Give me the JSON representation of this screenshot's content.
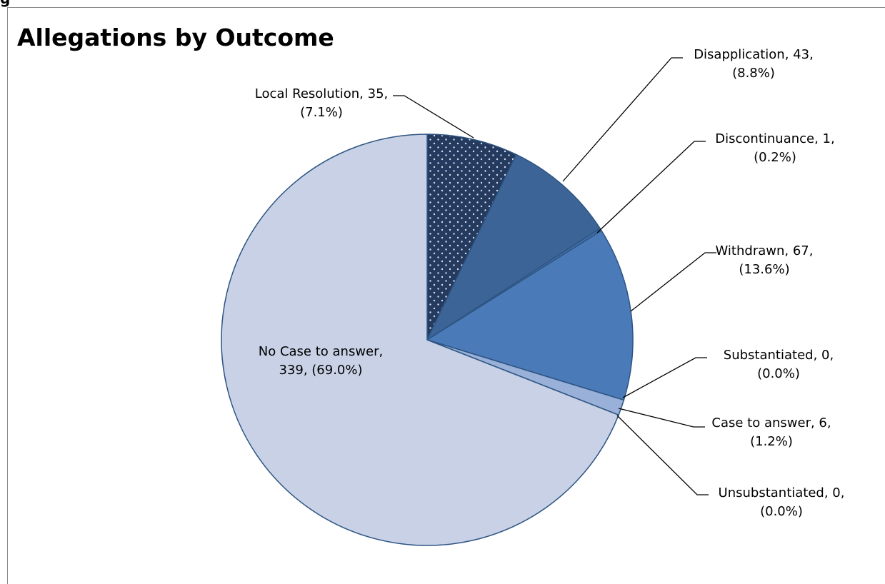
{
  "top_fragment": "g",
  "chart_data": {
    "type": "pie",
    "title": "Allegations by Outcome",
    "start_angle_deg": 0,
    "direction": "clockwise",
    "legend": "none",
    "slices": [
      {
        "name": "Local Resolution",
        "value": 35,
        "percent": "7.1%",
        "color": "#243a5e",
        "pattern": "dots",
        "label_lines": [
          "Local Resolution, 35,",
          "(7.1%)"
        ]
      },
      {
        "name": "Disapplication",
        "value": 43,
        "percent": "8.8%",
        "color": "#3c6496",
        "label_lines": [
          "Disapplication, 43,",
          "(8.8%)"
        ]
      },
      {
        "name": "Discontinuance",
        "value": 1,
        "percent": "0.2%",
        "color": "#4470aa",
        "label_lines": [
          "Discontinuance, 1,",
          "(0.2%)"
        ]
      },
      {
        "name": "Withdrawn",
        "value": 67,
        "percent": "13.6%",
        "color": "#4a7ab8",
        "label_lines": [
          "Withdrawn, 67,",
          "(13.6%)"
        ]
      },
      {
        "name": "Substantiated",
        "value": 0,
        "percent": "0.0%",
        "color": "#6b8fc6",
        "label_lines": [
          "Substantiated, 0,",
          "(0.0%)"
        ]
      },
      {
        "name": "Case to answer",
        "value": 6,
        "percent": "1.2%",
        "color": "#99b0d8",
        "label_lines": [
          "Case to answer, 6,",
          "(1.2%)"
        ]
      },
      {
        "name": "Unsubstantiated",
        "value": 0,
        "percent": "0.0%",
        "color": "#b3c2e0",
        "label_lines": [
          "Unsubstantiated, 0,",
          "(0.0%)"
        ]
      },
      {
        "name": "No Case to answer",
        "value": 339,
        "percent": "69.0%",
        "color": "#c8d1e6",
        "label_lines": [
          "No Case to answer,",
          "339, (69.0%)"
        ]
      }
    ]
  }
}
